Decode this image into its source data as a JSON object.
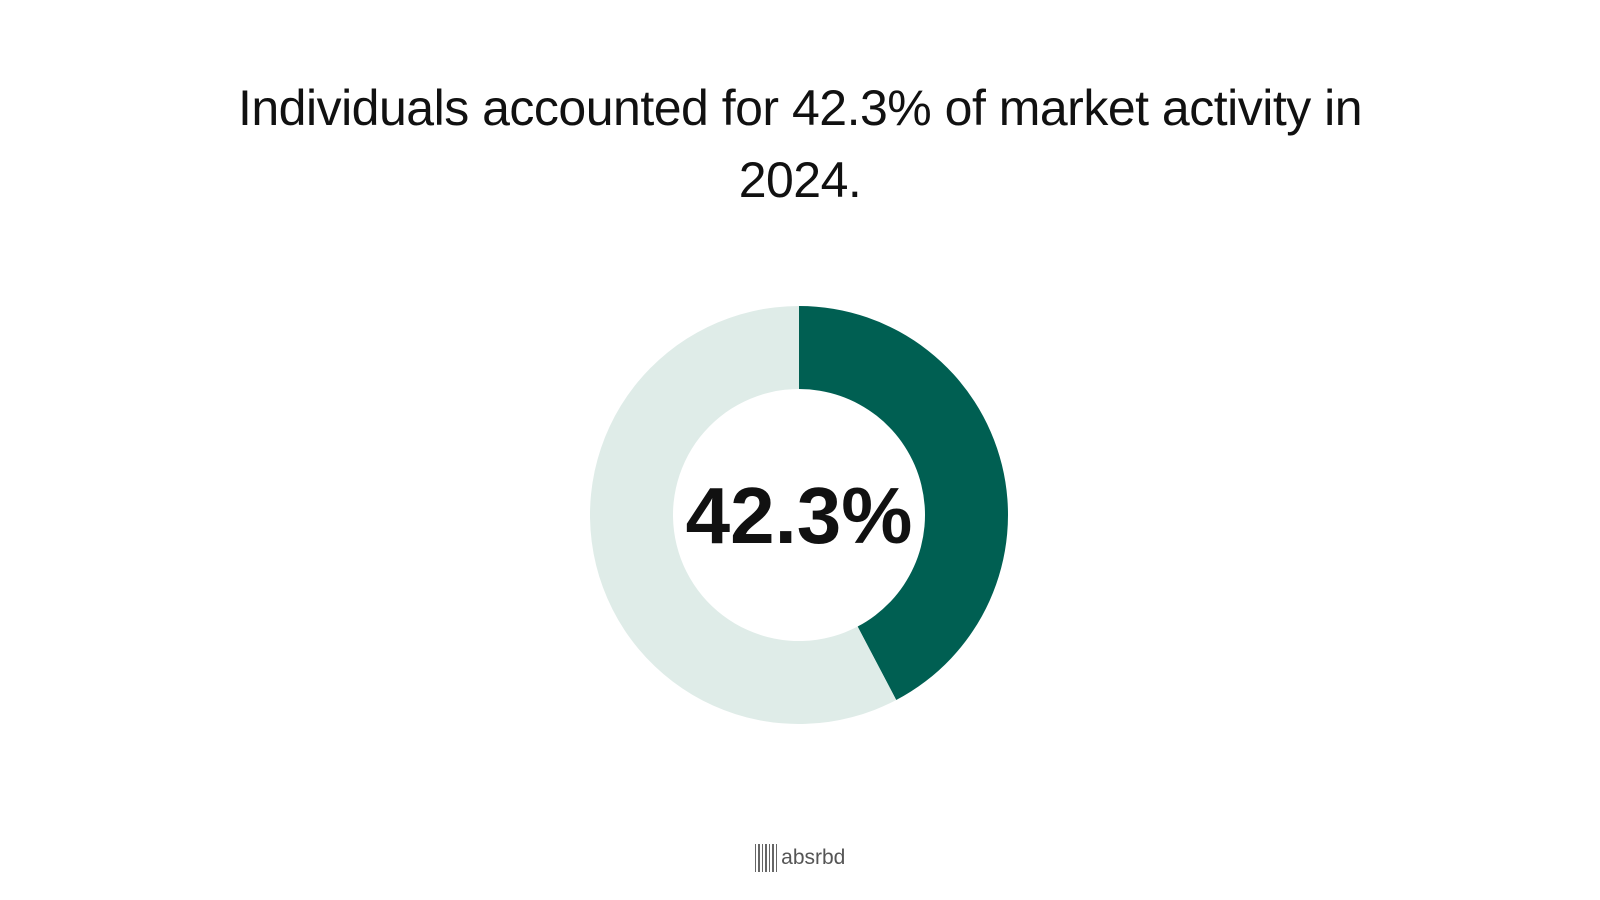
{
  "chart_data": {
    "type": "donut",
    "title": "Individuals accounted for 42.3% of market activity in 2024.",
    "values": [
      42.3,
      57.7
    ],
    "value_labels": [
      "42.3%",
      null
    ],
    "colors": [
      "#005f52",
      "#dfece8"
    ]
  },
  "brand": "absrbd"
}
